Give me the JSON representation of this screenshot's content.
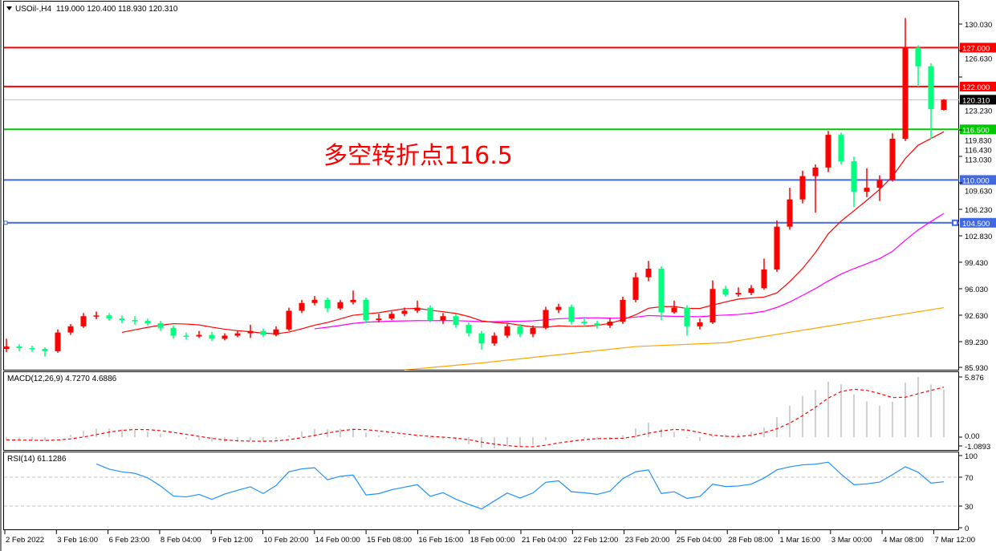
{
  "header": {
    "symbol": "USOil-,H4",
    "ohlc": "119.000 120.400 118.930 120.310",
    "menu_icon": "triangle-down-icon"
  },
  "annotation": "多空转折点116.5",
  "colors": {
    "up": "#ff0000",
    "down": "#00ff7f",
    "ma_fast": "#ff0000",
    "ma_mid": "#ff00ff",
    "ma_slow": "#ffa500",
    "macd_hist": "#c0c0c0",
    "macd_signal": "#ff0000",
    "rsi": "#1e90ff"
  },
  "chart_data": [
    {
      "type": "candlestick",
      "title": "USOil-,H4",
      "ylim": [
        85.93,
        130.03
      ],
      "yticks": [
        "130.030",
        "126.630",
        "123.230",
        "119.830",
        "116.430",
        "113.030",
        "109.630",
        "106.230",
        "102.830",
        "99.430",
        "96.030",
        "92.630",
        "89.230",
        "85.930"
      ],
      "xticks": [
        "2 Feb 2022",
        "3 Feb 16:00",
        "6 Feb 23:00",
        "8 Feb 04:00",
        "9 Feb 12:00",
        "10 Feb 20:00",
        "14 Feb 00:00",
        "15 Feb 08:00",
        "16 Feb 16:00",
        "18 Feb 00:00",
        "21 Feb 04:00",
        "22 Feb 12:00",
        "23 Feb 20:00",
        "25 Feb 04:00",
        "28 Feb 08:00",
        "1 Mar 16:00",
        "3 Mar 00:00",
        "4 Mar 08:00",
        "7 Mar 12:00"
      ],
      "ohlc": [
        [
          88.3,
          89.6,
          87.9,
          88.6
        ],
        [
          88.6,
          88.9,
          88.0,
          88.4
        ],
        [
          88.4,
          88.7,
          87.9,
          88.3
        ],
        [
          88.3,
          88.5,
          87.3,
          88.0
        ],
        [
          88.0,
          90.8,
          87.8,
          90.4
        ],
        [
          90.4,
          91.5,
          90.1,
          91.2
        ],
        [
          91.2,
          92.9,
          91.0,
          92.5
        ],
        [
          92.5,
          93.1,
          92.1,
          92.6
        ],
        [
          92.6,
          92.9,
          91.9,
          92.2
        ],
        [
          92.2,
          92.6,
          91.6,
          92.0
        ],
        [
          92.0,
          92.5,
          91.4,
          91.9
        ],
        [
          91.9,
          92.2,
          91.3,
          91.6
        ],
        [
          91.6,
          91.9,
          90.6,
          91.0
        ],
        [
          91.0,
          91.3,
          89.6,
          90.0
        ],
        [
          90.0,
          90.4,
          89.5,
          89.9
        ],
        [
          89.9,
          90.6,
          89.7,
          90.1
        ],
        [
          90.1,
          90.5,
          89.3,
          89.6
        ],
        [
          89.6,
          90.3,
          89.4,
          90.0
        ],
        [
          90.0,
          90.6,
          89.8,
          90.3
        ],
        [
          90.3,
          91.4,
          89.7,
          90.6
        ],
        [
          90.6,
          90.9,
          89.8,
          90.1
        ],
        [
          90.1,
          91.2,
          89.9,
          90.8
        ],
        [
          90.8,
          93.6,
          90.6,
          93.2
        ],
        [
          93.2,
          94.6,
          92.9,
          94.2
        ],
        [
          94.2,
          95.1,
          93.9,
          94.6
        ],
        [
          94.6,
          94.9,
          93.0,
          93.5
        ],
        [
          93.5,
          94.6,
          93.3,
          94.3
        ],
        [
          94.3,
          95.8,
          94.0,
          94.6
        ],
        [
          94.6,
          94.9,
          91.6,
          92.0
        ],
        [
          92.0,
          92.8,
          91.7,
          92.2
        ],
        [
          92.2,
          93.1,
          92.0,
          92.8
        ],
        [
          92.8,
          93.6,
          92.5,
          93.2
        ],
        [
          93.2,
          94.5,
          92.9,
          93.6
        ],
        [
          93.6,
          93.9,
          91.7,
          92.0
        ],
        [
          92.0,
          92.9,
          91.5,
          92.5
        ],
        [
          92.5,
          92.8,
          91.0,
          91.4
        ],
        [
          91.4,
          91.7,
          89.9,
          90.3
        ],
        [
          90.3,
          90.6,
          88.2,
          89.0
        ],
        [
          89.0,
          90.4,
          88.7,
          90.0
        ],
        [
          90.0,
          91.5,
          89.7,
          91.2
        ],
        [
          91.2,
          91.5,
          89.8,
          90.2
        ],
        [
          90.2,
          91.3,
          89.8,
          91.0
        ],
        [
          91.0,
          93.7,
          90.8,
          93.3
        ],
        [
          93.3,
          94.1,
          92.9,
          93.7
        ],
        [
          93.7,
          94.0,
          91.4,
          91.8
        ],
        [
          91.8,
          92.4,
          91.2,
          91.6
        ],
        [
          91.6,
          91.9,
          90.9,
          91.3
        ],
        [
          91.3,
          92.3,
          91.0,
          91.8
        ],
        [
          91.8,
          95.0,
          91.5,
          94.6
        ],
        [
          94.6,
          98.1,
          94.3,
          97.5
        ],
        [
          97.5,
          99.6,
          97.0,
          98.6
        ],
        [
          98.6,
          98.9,
          92.0,
          93.0
        ],
        [
          93.0,
          94.5,
          92.8,
          93.6
        ],
        [
          93.6,
          93.9,
          90.0,
          91.2
        ],
        [
          91.2,
          92.2,
          90.8,
          91.7
        ],
        [
          91.7,
          97.1,
          91.5,
          96.0
        ],
        [
          96.0,
          96.4,
          95.0,
          95.3
        ],
        [
          95.3,
          96.2,
          95.0,
          95.5
        ],
        [
          95.5,
          96.5,
          95.2,
          96.1
        ],
        [
          96.1,
          99.9,
          95.9,
          98.5
        ],
        [
          98.5,
          104.8,
          98.2,
          104.0
        ],
        [
          104.0,
          109.0,
          103.6,
          107.5
        ],
        [
          107.5,
          111.2,
          107.0,
          110.5
        ],
        [
          110.5,
          112.0,
          105.8,
          111.6
        ],
        [
          111.6,
          116.3,
          111.0,
          115.8
        ],
        [
          115.8,
          116.1,
          112.0,
          112.4
        ],
        [
          112.4,
          113.0,
          106.5,
          108.5
        ],
        [
          108.5,
          111.5,
          107.8,
          109.0
        ],
        [
          109.0,
          110.6,
          107.3,
          110.0
        ],
        [
          110.0,
          116.0,
          109.8,
          115.3
        ],
        [
          115.3,
          130.8,
          115.0,
          127.0
        ],
        [
          127.0,
          127.3,
          122.0,
          124.6
        ],
        [
          124.6,
          125.0,
          115.3,
          119.1
        ],
        [
          119.0,
          120.4,
          118.93,
          120.31
        ]
      ],
      "moving_averages": {
        "fast_period": 10,
        "mid_period": 25,
        "slow_points": [
          [
            31,
            85.6
          ],
          [
            37,
            86.5
          ],
          [
            49,
            88.6
          ],
          [
            56,
            89.1
          ],
          [
            62,
            90.7
          ],
          [
            73,
            93.6
          ]
        ]
      },
      "levels": [
        {
          "value": 127.0,
          "label": "127.000",
          "color": "#ff0000"
        },
        {
          "value": 122.0,
          "label": "122.000",
          "color": "#ff0000"
        },
        {
          "value": 120.31,
          "label": "120.310",
          "color": "#c0c0c0",
          "label_bg": "#000000"
        },
        {
          "value": 116.5,
          "label": "116.500",
          "color": "#00c800"
        },
        {
          "value": 110.0,
          "label": "110.000",
          "color": "#4169e1"
        },
        {
          "value": 104.5,
          "label": "104.500",
          "color": "#4169e1",
          "selected": true
        }
      ]
    },
    {
      "type": "macd",
      "label": "MACD(12,26,9) 4.7270 4.6886",
      "ylim": [
        -1.0893,
        5.876
      ],
      "yticks": [
        "5.876",
        "0.00",
        "-1.0893"
      ]
    },
    {
      "type": "rsi",
      "label": "RSI(14) 61.1286",
      "ylim": [
        0,
        100
      ],
      "yticks": [
        "100",
        "70",
        "30",
        "0"
      ],
      "levels": [
        70,
        30
      ]
    }
  ]
}
